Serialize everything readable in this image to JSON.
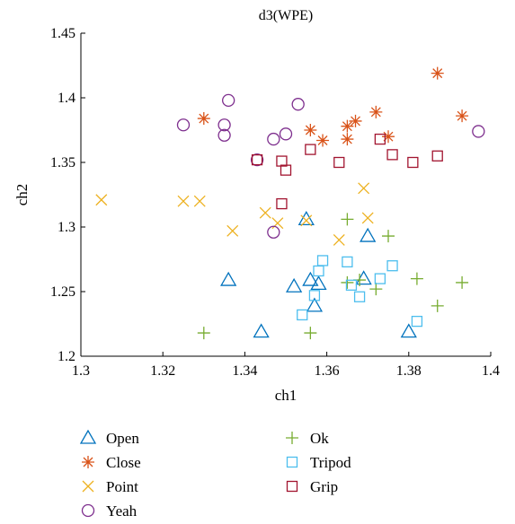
{
  "chart_data": {
    "type": "scatter",
    "title": "d3(WPE)",
    "xlabel": "ch1",
    "ylabel": "ch2",
    "xlim": [
      1.3,
      1.4
    ],
    "ylim": [
      1.2,
      1.45
    ],
    "x_ticks": [
      "1.3",
      "1.32",
      "1.34",
      "1.36",
      "1.38",
      "1.4"
    ],
    "y_ticks": [
      "1.2",
      "1.25",
      "1.3",
      "1.35",
      "1.4",
      "1.45"
    ],
    "x_tick_values": [
      1.3,
      1.32,
      1.34,
      1.36,
      1.38,
      1.4
    ],
    "y_tick_values": [
      1.2,
      1.25,
      1.3,
      1.35,
      1.4,
      1.45
    ],
    "grid": false,
    "legend_position": "below",
    "series": [
      {
        "name": "Open",
        "marker": "triangle",
        "color": "#0072BD",
        "points": [
          [
            1.336,
            1.259
          ],
          [
            1.344,
            1.219
          ],
          [
            1.352,
            1.254
          ],
          [
            1.355,
            1.306
          ],
          [
            1.356,
            1.259
          ],
          [
            1.357,
            1.239
          ],
          [
            1.358,
            1.256
          ],
          [
            1.369,
            1.26
          ],
          [
            1.37,
            1.293
          ],
          [
            1.38,
            1.219
          ]
        ]
      },
      {
        "name": "Close",
        "marker": "asterisk",
        "color": "#D95319",
        "points": [
          [
            1.33,
            1.384
          ],
          [
            1.356,
            1.375
          ],
          [
            1.359,
            1.367
          ],
          [
            1.365,
            1.378
          ],
          [
            1.365,
            1.368
          ],
          [
            1.367,
            1.382
          ],
          [
            1.372,
            1.389
          ],
          [
            1.375,
            1.37
          ],
          [
            1.387,
            1.419
          ],
          [
            1.393,
            1.386
          ]
        ]
      },
      {
        "name": "Point",
        "marker": "x",
        "color": "#EDB120",
        "points": [
          [
            1.305,
            1.321
          ],
          [
            1.325,
            1.32
          ],
          [
            1.329,
            1.32
          ],
          [
            1.337,
            1.297
          ],
          [
            1.345,
            1.311
          ],
          [
            1.348,
            1.303
          ],
          [
            1.355,
            1.305
          ],
          [
            1.363,
            1.29
          ],
          [
            1.369,
            1.33
          ],
          [
            1.37,
            1.307
          ]
        ]
      },
      {
        "name": "Yeah",
        "marker": "circle",
        "color": "#7E2F8E",
        "points": [
          [
            1.325,
            1.379
          ],
          [
            1.336,
            1.398
          ],
          [
            1.335,
            1.379
          ],
          [
            1.335,
            1.371
          ],
          [
            1.343,
            1.352
          ],
          [
            1.347,
            1.368
          ],
          [
            1.35,
            1.372
          ],
          [
            1.353,
            1.395
          ],
          [
            1.347,
            1.296
          ],
          [
            1.397,
            1.374
          ]
        ]
      },
      {
        "name": "Ok",
        "marker": "plus",
        "color": "#77AC30",
        "points": [
          [
            1.33,
            1.218
          ],
          [
            1.356,
            1.218
          ],
          [
            1.365,
            1.306
          ],
          [
            1.375,
            1.293
          ],
          [
            1.368,
            1.259
          ],
          [
            1.372,
            1.252
          ],
          [
            1.365,
            1.257
          ],
          [
            1.382,
            1.26
          ],
          [
            1.387,
            1.239
          ],
          [
            1.393,
            1.257
          ]
        ]
      },
      {
        "name": "Tripod",
        "marker": "square",
        "color": "#4DBEEE",
        "points": [
          [
            1.354,
            1.232
          ],
          [
            1.357,
            1.247
          ],
          [
            1.358,
            1.266
          ],
          [
            1.359,
            1.274
          ],
          [
            1.365,
            1.273
          ],
          [
            1.366,
            1.255
          ],
          [
            1.368,
            1.246
          ],
          [
            1.373,
            1.26
          ],
          [
            1.376,
            1.27
          ],
          [
            1.382,
            1.227
          ]
        ]
      },
      {
        "name": "Grip",
        "marker": "square",
        "color": "#A2142F",
        "points": [
          [
            1.343,
            1.352
          ],
          [
            1.349,
            1.351
          ],
          [
            1.349,
            1.318
          ],
          [
            1.35,
            1.344
          ],
          [
            1.356,
            1.36
          ],
          [
            1.363,
            1.35
          ],
          [
            1.373,
            1.368
          ],
          [
            1.376,
            1.356
          ],
          [
            1.381,
            1.35
          ],
          [
            1.387,
            1.355
          ]
        ]
      }
    ]
  }
}
